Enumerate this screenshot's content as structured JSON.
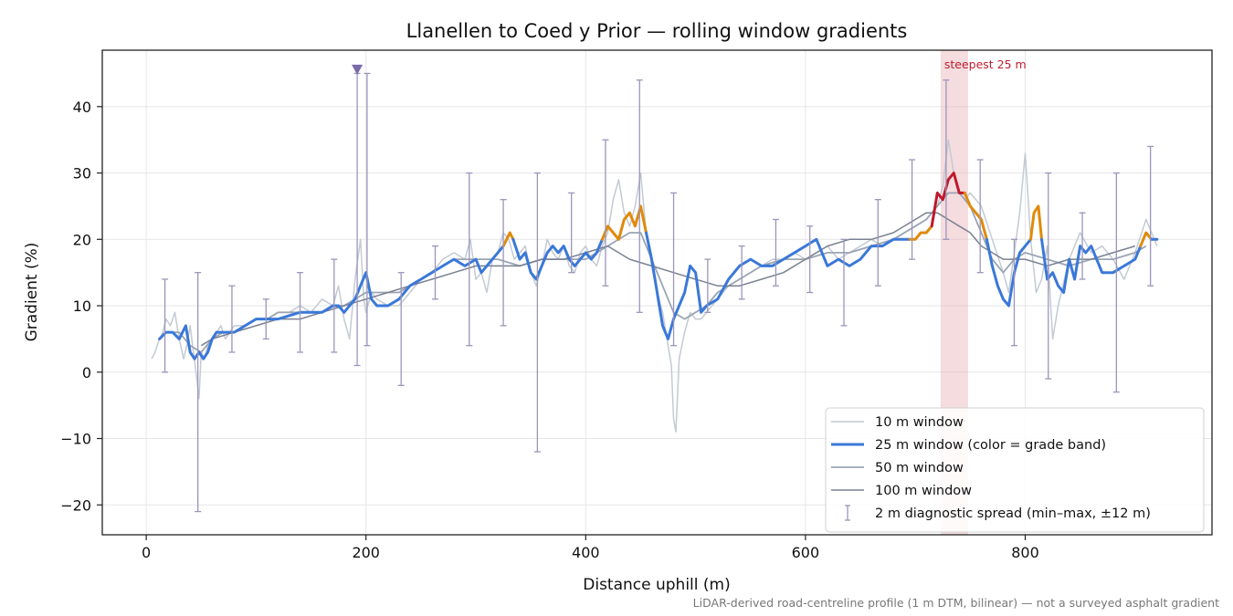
{
  "chart_data": {
    "type": "line",
    "title": "Llanellen to Coed y Prior — rolling window gradients",
    "xlabel": "Distance uphill (m)",
    "ylabel": "Gradient (%)",
    "xlim": [
      -40,
      970
    ],
    "ylim": [
      -24.5,
      48.5
    ],
    "x_ticks": [
      0,
      200,
      400,
      600,
      800
    ],
    "x_tick_labels": [
      "0",
      "200",
      "400",
      "600",
      "800"
    ],
    "y_ticks": [
      -20,
      -10,
      0,
      10,
      20,
      30,
      40
    ],
    "y_tick_labels": [
      "−20",
      "−10",
      "0",
      "10",
      "20",
      "30",
      "40"
    ],
    "grid": true,
    "legend_position": "lower right",
    "note": "LiDAR-derived road-centreline profile (1 m DTM, bilinear) — not a surveyed asphalt gradient",
    "colors": {
      "w10": "#c3cad3",
      "w25_easy": "#3a78d8",
      "w25_moderate": "#e08a0b",
      "w25_steep": "#c0182b",
      "w50": "#9aa5b3",
      "w100": "#7a8191",
      "diagnostic": "#9b95bb",
      "steepest_band": "#e7a8ae",
      "marker": "#7a6aaa"
    },
    "steepest_segment": {
      "label": "steepest 25 m",
      "x_range": [
        723,
        748
      ]
    },
    "clip_marker": {
      "x": 192,
      "y": 45.5
    },
    "series": [
      {
        "key": "w10",
        "name": "10 m window",
        "x": [
          5,
          8,
          12,
          15,
          18,
          22,
          26,
          30,
          34,
          37,
          40,
          43,
          46,
          48,
          50,
          53,
          56,
          60,
          64,
          68,
          72,
          76,
          80,
          90,
          100,
          110,
          120,
          130,
          140,
          150,
          160,
          170,
          175,
          180,
          185,
          190,
          195,
          198,
          200,
          205,
          210,
          220,
          230,
          240,
          250,
          260,
          270,
          280,
          290,
          295,
          300,
          305,
          310,
          315,
          320,
          325,
          330,
          335,
          340,
          345,
          350,
          355,
          360,
          365,
          370,
          375,
          380,
          385,
          390,
          395,
          400,
          405,
          410,
          415,
          420,
          425,
          430,
          435,
          440,
          445,
          450,
          455,
          460,
          465,
          470,
          475,
          478,
          480,
          482,
          485,
          490,
          495,
          500,
          505,
          510,
          515,
          520,
          525,
          530,
          540,
          550,
          560,
          570,
          580,
          590,
          600,
          610,
          620,
          630,
          640,
          650,
          660,
          670,
          680,
          690,
          700,
          710,
          720,
          725,
          730,
          735,
          740,
          745,
          750,
          760,
          770,
          780,
          785,
          790,
          795,
          800,
          805,
          810,
          815,
          820,
          825,
          830,
          840,
          850,
          860,
          870,
          880,
          890,
          900,
          910,
          920
        ],
        "y": [
          2,
          3,
          5,
          6,
          8,
          7,
          9,
          5,
          2,
          4,
          7,
          3,
          -1,
          -4,
          3,
          2,
          4,
          5,
          6,
          7,
          5,
          6,
          7,
          7,
          8,
          8,
          9,
          9,
          10,
          9,
          11,
          10,
          13,
          8,
          5,
          14,
          20,
          11,
          9,
          12,
          11,
          10,
          10,
          12,
          14,
          15,
          17,
          18,
          17,
          20,
          14,
          15,
          12,
          17,
          18,
          21,
          20,
          17,
          18,
          19,
          15,
          13,
          16,
          20,
          18,
          17,
          19,
          16,
          15,
          18,
          19,
          17,
          16,
          19,
          21,
          26,
          29,
          24,
          22,
          25,
          30,
          21,
          16,
          12,
          9,
          4,
          1,
          -7,
          -9,
          2,
          6,
          9,
          8,
          8,
          9,
          10,
          11,
          12,
          13,
          14,
          15,
          16,
          17,
          17,
          18,
          17,
          18,
          19,
          17,
          18,
          19,
          20,
          19,
          20,
          21,
          22,
          23,
          25,
          28,
          35,
          30,
          27,
          26,
          27,
          25,
          20,
          15,
          12,
          18,
          24,
          33,
          20,
          12,
          14,
          19,
          5,
          10,
          17,
          21,
          18,
          19,
          17,
          14,
          18,
          23,
          19
        ]
      },
      {
        "key": "w25",
        "name": "25 m window (color = grade band)",
        "bands": [
          {
            "band": "easy",
            "x": [
              12,
              18,
              24,
              30,
              36,
              40,
              44,
              48,
              52,
              56,
              60,
              64,
              70,
              80,
              90,
              100,
              120,
              140,
              160,
              170,
              175,
              180,
              185,
              190,
              195,
              200,
              205,
              210,
              220,
              230,
              240,
              250,
              260,
              270,
              280,
              290,
              300,
              305,
              310,
              315,
              320,
              325
            ],
            "y": [
              5,
              6,
              6,
              5,
              7,
              3,
              2,
              3,
              2,
              3,
              5,
              6,
              6,
              6,
              7,
              8,
              8,
              9,
              9,
              10,
              10,
              9,
              10,
              11,
              13,
              15,
              11,
              10,
              10,
              11,
              13,
              14,
              15,
              16,
              17,
              16,
              17,
              15,
              16,
              17,
              18,
              19
            ]
          },
          {
            "band": "moderate",
            "x": [
              325,
              328,
              331,
              334
            ],
            "y": [
              19,
              20,
              21,
              20
            ]
          },
          {
            "band": "easy",
            "x": [
              334,
              340,
              345,
              350,
              355,
              360,
              365,
              370,
              375,
              380,
              385,
              390,
              395,
              400,
              405,
              410,
              415
            ],
            "y": [
              20,
              17,
              18,
              15,
              14,
              16,
              18,
              19,
              18,
              19,
              17,
              16,
              17,
              18,
              17,
              18,
              20
            ]
          },
          {
            "band": "moderate",
            "x": [
              415,
              420,
              425,
              430,
              435,
              440,
              445,
              450,
              455
            ],
            "y": [
              20,
              22,
              21,
              20,
              23,
              24,
              22,
              25,
              21
            ]
          },
          {
            "band": "easy",
            "x": [
              455,
              460,
              465,
              470,
              475,
              480,
              485,
              490,
              495,
              500,
              505,
              510,
              520,
              530,
              540,
              550,
              560,
              570,
              580,
              590,
              600,
              610,
              620,
              630,
              640,
              650,
              660,
              670,
              680,
              690,
              695
            ],
            "y": [
              21,
              17,
              12,
              7,
              5,
              8,
              10,
              12,
              16,
              15,
              9,
              10,
              11,
              14,
              16,
              17,
              16,
              16,
              17,
              18,
              19,
              20,
              16,
              17,
              16,
              17,
              19,
              19,
              20,
              20,
              20
            ]
          },
          {
            "band": "moderate",
            "x": [
              695,
              700,
              705,
              710,
              715
            ],
            "y": [
              20,
              20,
              21,
              21,
              22
            ]
          },
          {
            "band": "steep",
            "x": [
              715,
              720,
              725,
              730,
              735,
              740,
              745
            ],
            "y": [
              22,
              27,
              26,
              29,
              30,
              27,
              27
            ]
          },
          {
            "band": "moderate",
            "x": [
              745,
              750,
              755,
              760,
              765
            ],
            "y": [
              27,
              25,
              24,
              23,
              20
            ]
          },
          {
            "band": "easy",
            "x": [
              765,
              770,
              775,
              780,
              785,
              790,
              795,
              800,
              805
            ],
            "y": [
              20,
              16,
              13,
              11,
              10,
              15,
              18,
              19,
              20
            ]
          },
          {
            "band": "moderate",
            "x": [
              805,
              808,
              812,
              815
            ],
            "y": [
              20,
              24,
              25,
              20
            ]
          },
          {
            "band": "easy",
            "x": [
              815,
              820,
              825,
              830,
              835,
              840,
              845,
              850,
              855,
              860,
              865,
              870,
              880,
              890,
              900,
              905
            ],
            "y": [
              20,
              14,
              15,
              13,
              12,
              17,
              14,
              19,
              18,
              19,
              17,
              15,
              15,
              16,
              17,
              19
            ]
          },
          {
            "band": "moderate",
            "x": [
              905,
              910,
              915
            ],
            "y": [
              19,
              21,
              20
            ]
          },
          {
            "band": "easy",
            "x": [
              915,
              920
            ],
            "y": [
              20,
              20
            ]
          }
        ]
      },
      {
        "key": "w50",
        "name": "50 m window",
        "x": [
          20,
          30,
          40,
          50,
          60,
          70,
          80,
          90,
          100,
          110,
          120,
          130,
          140,
          150,
          160,
          170,
          180,
          190,
          200,
          210,
          220,
          230,
          240,
          250,
          260,
          270,
          280,
          290,
          300,
          320,
          340,
          360,
          380,
          400,
          420,
          440,
          450,
          460,
          470,
          480,
          490,
          500,
          510,
          520,
          540,
          560,
          580,
          600,
          620,
          640,
          660,
          680,
          700,
          710,
          720,
          730,
          740,
          750,
          760,
          770,
          780,
          790,
          800,
          820,
          840,
          860,
          880,
          900,
          910
        ],
        "y": [
          6,
          6,
          4,
          3,
          5,
          6,
          6,
          7,
          8,
          8,
          9,
          9,
          9,
          9,
          9,
          10,
          10,
          11,
          12,
          12,
          12,
          12,
          13,
          14,
          15,
          16,
          17,
          17,
          17,
          17,
          16,
          17,
          17,
          17,
          19,
          21,
          21,
          17,
          13,
          9,
          8,
          9,
          10,
          12,
          14,
          16,
          17,
          17,
          18,
          18,
          19,
          20,
          22,
          23,
          25,
          27,
          27,
          25,
          21,
          17,
          15,
          17,
          18,
          17,
          16,
          17,
          17,
          18,
          19
        ]
      },
      {
        "key": "w100",
        "name": "100 m window",
        "x": [
          50,
          60,
          80,
          100,
          120,
          140,
          160,
          180,
          200,
          220,
          240,
          260,
          280,
          300,
          320,
          340,
          360,
          380,
          400,
          420,
          440,
          460,
          480,
          500,
          520,
          540,
          560,
          580,
          600,
          620,
          640,
          660,
          680,
          700,
          710,
          720,
          730,
          740,
          750,
          760,
          780,
          800,
          820,
          840,
          860,
          880,
          900
        ],
        "y": [
          4,
          5,
          6,
          7,
          8,
          8,
          9,
          10,
          11,
          12,
          13,
          14,
          15,
          16,
          16,
          16,
          17,
          17,
          18,
          19,
          17,
          16,
          15,
          14,
          13,
          13,
          14,
          15,
          17,
          19,
          20,
          20,
          21,
          23,
          24,
          24,
          23,
          22,
          21,
          19,
          17,
          17,
          16,
          17,
          17,
          18,
          19
        ]
      },
      {
        "key": "diagnostic",
        "name": "2 m diagnostic spread (min–max, ±12 m)",
        "x": [
          17,
          47,
          78,
          109,
          140,
          171,
          192,
          201,
          232,
          263,
          294,
          325,
          356,
          387,
          418,
          449,
          480,
          511,
          542,
          573,
          604,
          635,
          666,
          697,
          728,
          759,
          790,
          821,
          852,
          883,
          914
        ],
        "low": [
          0,
          -21,
          3,
          5,
          3,
          3,
          1,
          4,
          -2,
          11,
          4,
          7,
          -12,
          15,
          13,
          9,
          4,
          9,
          11,
          13,
          12,
          7,
          13,
          17,
          20,
          15,
          4,
          -1,
          14,
          -3,
          13
        ],
        "high": [
          14,
          15,
          13,
          11,
          15,
          17,
          45,
          45,
          15,
          19,
          30,
          26,
          30,
          27,
          35,
          44,
          27,
          17,
          19,
          23,
          22,
          20,
          26,
          32,
          44,
          32,
          20,
          30,
          24,
          30,
          34
        ]
      }
    ]
  }
}
